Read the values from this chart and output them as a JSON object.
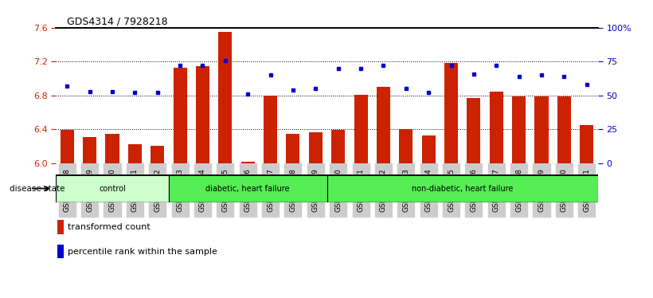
{
  "title": "GDS4314 / 7928218",
  "samples": [
    "GSM662158",
    "GSM662159",
    "GSM662160",
    "GSM662161",
    "GSM662162",
    "GSM662163",
    "GSM662164",
    "GSM662165",
    "GSM662166",
    "GSM662167",
    "GSM662168",
    "GSM662169",
    "GSM662170",
    "GSM662171",
    "GSM662172",
    "GSM662173",
    "GSM662174",
    "GSM662175",
    "GSM662176",
    "GSM662177",
    "GSM662178",
    "GSM662179",
    "GSM662180",
    "GSM662181"
  ],
  "transformed_count": [
    6.39,
    6.31,
    6.35,
    6.22,
    6.2,
    7.13,
    7.15,
    7.55,
    6.02,
    6.8,
    6.35,
    6.36,
    6.39,
    6.81,
    6.9,
    6.4,
    6.33,
    7.18,
    6.77,
    6.84,
    6.79,
    6.79,
    6.79,
    6.45
  ],
  "percentile": [
    57,
    53,
    53,
    52,
    52,
    72,
    72,
    76,
    51,
    65,
    54,
    55,
    70,
    70,
    72,
    55,
    52,
    72,
    66,
    72,
    64,
    65,
    64,
    58
  ],
  "ylim_left": [
    6.0,
    7.6
  ],
  "ylim_right": [
    0,
    100
  ],
  "yticks_left": [
    6.0,
    6.4,
    6.8,
    7.2,
    7.6
  ],
  "yticks_right": [
    0,
    25,
    50,
    75,
    100
  ],
  "ytick_labels_right": [
    "0",
    "25",
    "50",
    "75",
    "100%"
  ],
  "groups": [
    {
      "label": "control",
      "start": 0,
      "end": 5,
      "color": "#ccffcc"
    },
    {
      "label": "diabetic, heart failure",
      "start": 5,
      "end": 12,
      "color": "#55ee55"
    },
    {
      "label": "non-diabetic, heart failure",
      "start": 12,
      "end": 24,
      "color": "#55ee55"
    }
  ],
  "bar_color": "#cc2200",
  "dot_color": "#0000cc",
  "bar_width": 0.6,
  "bg_color": "#ffffff",
  "left_tick_color": "#cc2200",
  "right_tick_color": "#0000cc",
  "tick_bg_color": "#cccccc",
  "legend_items": [
    "transformed count",
    "percentile rank within the sample"
  ],
  "disease_state_label": "disease state"
}
